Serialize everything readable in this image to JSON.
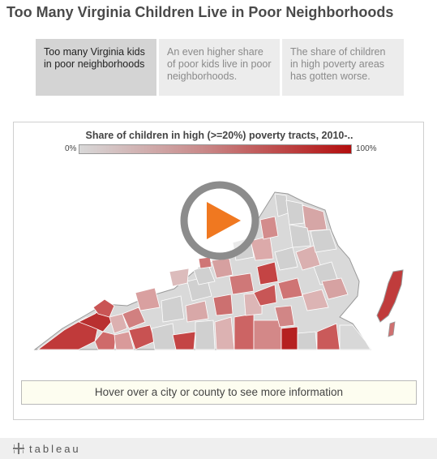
{
  "header": {
    "title": "Too Many Virginia Children Live in Poor Neighborhoods"
  },
  "tabs": [
    {
      "label": "Too many Virginia kids in poor neighborhoods",
      "active": true
    },
    {
      "label": "An even higher share of poor kids live in poor neighborhoods.",
      "active": false
    },
    {
      "label": "The share of children in high poverty areas has gotten worse.",
      "active": false
    }
  ],
  "legend": {
    "title": "Share of children in high (>=20%) poverty tracts, 2010-..",
    "min_label": "0%",
    "max_label": "100%",
    "color_low": "#d8d8d8",
    "color_high": "#b30e0e"
  },
  "map": {
    "region": "Virginia counties and cities",
    "play_icon": "play-icon",
    "play_color": "#f07820"
  },
  "hover_box": {
    "text": "Hover over a city or county to see more information"
  },
  "footer": {
    "logo_text": "tableau",
    "logo_icon": "tableau-cross-icon"
  }
}
